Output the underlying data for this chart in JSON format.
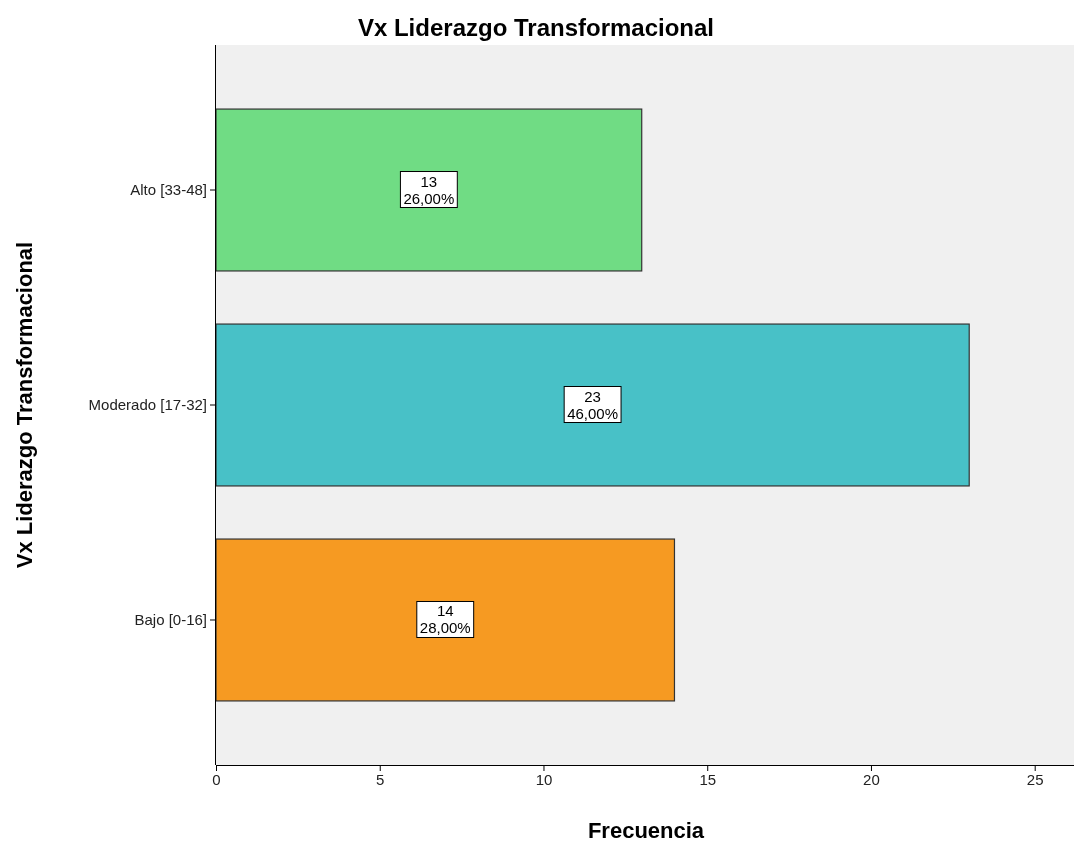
{
  "chart_data": {
    "type": "bar",
    "orientation": "horizontal",
    "title": "Vx Liderazgo Transformacional",
    "xlabel": "Frecuencia",
    "ylabel": "Vx Liderazgo Transformacional",
    "categories": [
      "Alto [33-48]",
      "Moderado [17-32]",
      "Bajo [0-16]"
    ],
    "values": [
      13,
      23,
      14
    ],
    "colors": [
      "#70dc84",
      "#48c1c7",
      "#f69a22"
    ],
    "value_labels": [
      "13\n26,00%",
      "23\n46,00%",
      "14\n28,00%"
    ],
    "xlim": [
      0,
      26.2
    ],
    "xticks": [
      0,
      5,
      10,
      15,
      20,
      25
    ],
    "grid": false
  }
}
